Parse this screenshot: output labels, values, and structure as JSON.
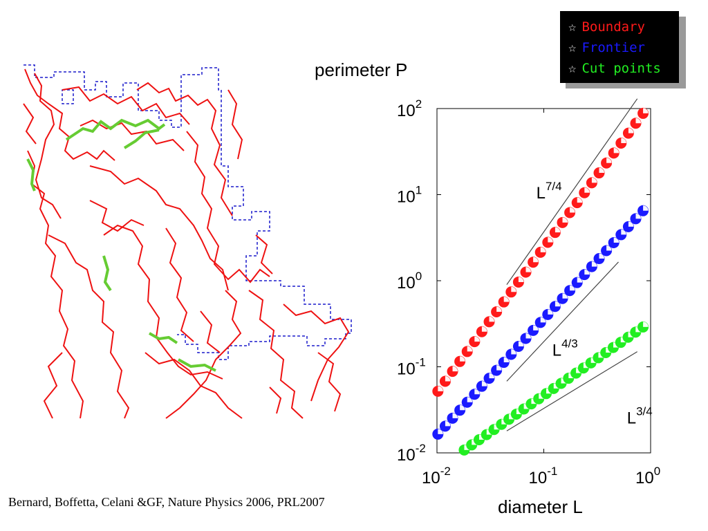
{
  "legend": {
    "items": [
      {
        "star": "☆",
        "label": "Boundary",
        "color": "#ff1a1a"
      },
      {
        "star": "☆",
        "label": "Frontier",
        "color": "#1a1aff"
      },
      {
        "star": "☆",
        "label": "Cut points",
        "color": "#22ee22"
      }
    ]
  },
  "citation": "Bernard, Boffetta, Celani &GF, Nature Physics 2006, PRL2007",
  "cluster_image": {
    "description_icon": "percolation-cluster-illustration",
    "colors": {
      "boundary": "#ff0000",
      "frontier": "#0000cc",
      "cut_points": "#66cc33"
    }
  },
  "chart_data": {
    "type": "scatter",
    "xlabel": "diameter L",
    "ylabel": "perimeter P",
    "xscale": "log",
    "yscale": "log",
    "xlim": [
      0.01,
      1
    ],
    "ylim": [
      0.01,
      100
    ],
    "xticks": [
      {
        "value": 0.01,
        "base": "10",
        "exp": "-2"
      },
      {
        "value": 0.1,
        "base": "10",
        "exp": "-1"
      },
      {
        "value": 1,
        "base": "10",
        "exp": "0"
      }
    ],
    "yticks": [
      {
        "value": 0.01,
        "base": "10",
        "exp": "-2"
      },
      {
        "value": 0.1,
        "base": "10",
        "exp": "-1"
      },
      {
        "value": 1,
        "base": "10",
        "exp": "0"
      },
      {
        "value": 10,
        "base": "10",
        "exp": "1"
      },
      {
        "value": 100,
        "base": "10",
        "exp": "2"
      }
    ],
    "series": [
      {
        "name": "Boundary",
        "color": "#ff1a1a",
        "x_range": [
          0.0102,
          0.85
        ],
        "y_range": [
          0.052,
          88
        ],
        "n": 29,
        "exponent": 1.75
      },
      {
        "name": "Frontier",
        "color": "#1a1aff",
        "x_range": [
          0.0102,
          0.85
        ],
        "y_range": [
          0.0165,
          6.5
        ],
        "n": 29,
        "exponent": 1.3333
      },
      {
        "name": "Cut points",
        "color": "#22ee22",
        "x_range": [
          0.018,
          0.85
        ],
        "y_range": [
          0.0108,
          0.29
        ],
        "n": 25,
        "exponent": 0.75
      }
    ],
    "guide_lines": [
      {
        "label_base": "L",
        "label_exp": "7/4",
        "x": [
          0.045,
          0.75
        ],
        "y": [
          0.9,
          130
        ],
        "label_x": 0.085,
        "label_y": 9.0
      },
      {
        "label_base": "L",
        "label_exp": "4/3",
        "x": [
          0.045,
          0.5
        ],
        "y": [
          0.068,
          1.65
        ],
        "label_x": 0.12,
        "label_y": 0.135
      },
      {
        "label_base": "L",
        "label_exp": "3/4",
        "x": [
          0.045,
          0.75
        ],
        "y": [
          0.018,
          0.15
        ],
        "label_x": 0.6,
        "label_y": 0.022
      }
    ]
  }
}
